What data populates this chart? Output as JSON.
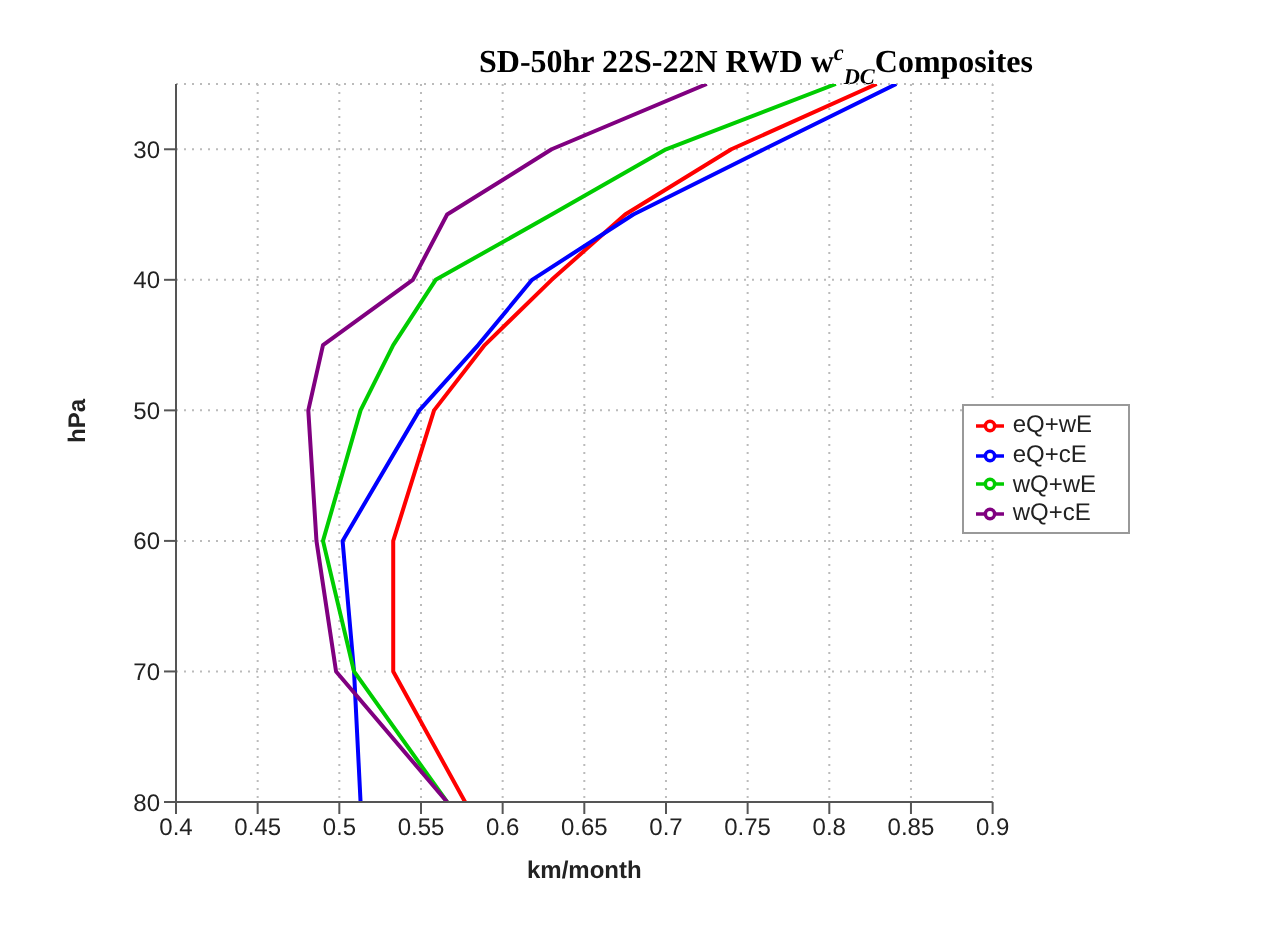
{
  "chart_data": {
    "type": "line",
    "orientation": "horizontal",
    "title": "SD-50hr 22S-22N RWD w$^{c}$$_{DC}$Composites",
    "xlabel": "km/month",
    "ylabel": "hPa",
    "x": [
      25,
      30,
      35,
      40,
      45,
      50,
      60,
      70,
      80
    ],
    "series": [
      {
        "name": "eQ+wE",
        "color": "#ff0000",
        "values": [
          0.829,
          0.74,
          0.675,
          0.63,
          0.589,
          0.558,
          0.533,
          0.533,
          0.577
        ]
      },
      {
        "name": "eQ+cE",
        "color": "#0000ff",
        "values": [
          0.841,
          0.76,
          0.68,
          0.618,
          0.585,
          0.549,
          0.502,
          0.509,
          0.513
        ]
      },
      {
        "name": "wQ+wE",
        "color": "#00cc00",
        "values": [
          0.804,
          0.7,
          0.63,
          0.559,
          0.533,
          0.513,
          0.49,
          0.509,
          0.566
        ]
      },
      {
        "name": "wQ+cE",
        "color": "#800080",
        "values": [
          0.725,
          0.63,
          0.566,
          0.545,
          0.49,
          0.481,
          0.486,
          0.498,
          0.566
        ]
      }
    ],
    "xlim": [
      0.4,
      0.9
    ],
    "xticks": [
      0.4,
      0.45,
      0.5,
      0.55,
      0.6,
      0.65,
      0.7,
      0.75,
      0.8,
      0.85,
      0.9
    ],
    "ylim": [
      80,
      25
    ],
    "yticks": [
      30,
      40,
      50,
      60,
      70,
      80
    ],
    "grid": true,
    "legend": "right",
    "marker": "none",
    "line_style": "solid"
  }
}
